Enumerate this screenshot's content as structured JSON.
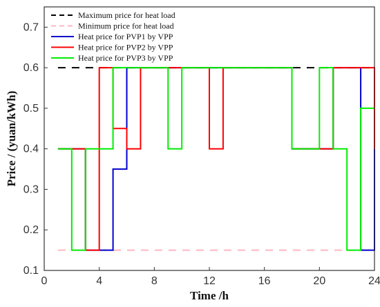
{
  "chart_data": {
    "type": "line",
    "step": true,
    "title": "",
    "xlabel": "Time /h",
    "ylabel": "Price / (yuan/kWh)",
    "xlim": [
      0,
      24
    ],
    "ylim": [
      0.1,
      0.75
    ],
    "xticks": [
      0,
      4,
      8,
      12,
      16,
      20,
      24
    ],
    "yticks": [
      0.1,
      0.2,
      0.3,
      0.4,
      0.5,
      0.6,
      0.7
    ],
    "grid": false,
    "legend": "top-left",
    "series": [
      {
        "name": "Maximum price for heat load",
        "color": "#000000",
        "style": "dashed",
        "x": [
          1,
          24
        ],
        "y": [
          0.6,
          0.6
        ]
      },
      {
        "name": "Minimum price for heat load",
        "color": "#ffb6c1",
        "style": "dashed",
        "x": [
          1,
          24
        ],
        "y": [
          0.15,
          0.15
        ]
      },
      {
        "name": "Heat price for PVP1 by VPP",
        "color": "#0000cc",
        "style": "solid",
        "x": [
          1,
          2,
          3,
          4,
          5,
          6,
          7,
          8,
          9,
          10,
          11,
          12,
          13,
          14,
          15,
          16,
          17,
          18,
          19,
          20,
          21,
          22,
          23,
          24
        ],
        "y": [
          0.4,
          0.4,
          0.15,
          0.15,
          0.35,
          0.6,
          0.6,
          0.6,
          0.6,
          0.6,
          0.6,
          0.6,
          0.6,
          0.6,
          0.6,
          0.6,
          0.6,
          0.4,
          0.4,
          0.4,
          0.6,
          0.6,
          0.15,
          0.4
        ]
      },
      {
        "name": "Heat price for PVP2 by VPP",
        "color": "#ff0000",
        "style": "solid",
        "x": [
          1,
          2,
          3,
          4,
          5,
          6,
          7,
          8,
          9,
          10,
          11,
          12,
          13,
          14,
          15,
          16,
          17,
          18,
          19,
          20,
          21,
          22,
          23,
          24
        ],
        "y": [
          0.4,
          0.4,
          0.15,
          0.6,
          0.45,
          0.4,
          0.6,
          0.6,
          0.6,
          0.6,
          0.6,
          0.4,
          0.6,
          0.6,
          0.6,
          0.6,
          0.6,
          0.4,
          0.4,
          0.4,
          0.6,
          0.6,
          0.6,
          0.4
        ]
      },
      {
        "name": "Heat price for PVP3 by VPP",
        "color": "#00ee00",
        "style": "solid",
        "x": [
          1,
          2,
          3,
          4,
          5,
          6,
          7,
          8,
          9,
          10,
          11,
          12,
          13,
          14,
          15,
          16,
          17,
          18,
          19,
          20,
          21,
          22,
          23,
          24
        ],
        "y": [
          0.4,
          0.15,
          0.4,
          0.4,
          0.6,
          0.6,
          0.6,
          0.6,
          0.4,
          0.6,
          0.6,
          0.6,
          0.6,
          0.6,
          0.6,
          0.6,
          0.6,
          0.4,
          0.4,
          0.6,
          0.4,
          0.15,
          0.5,
          0.5
        ]
      }
    ]
  }
}
